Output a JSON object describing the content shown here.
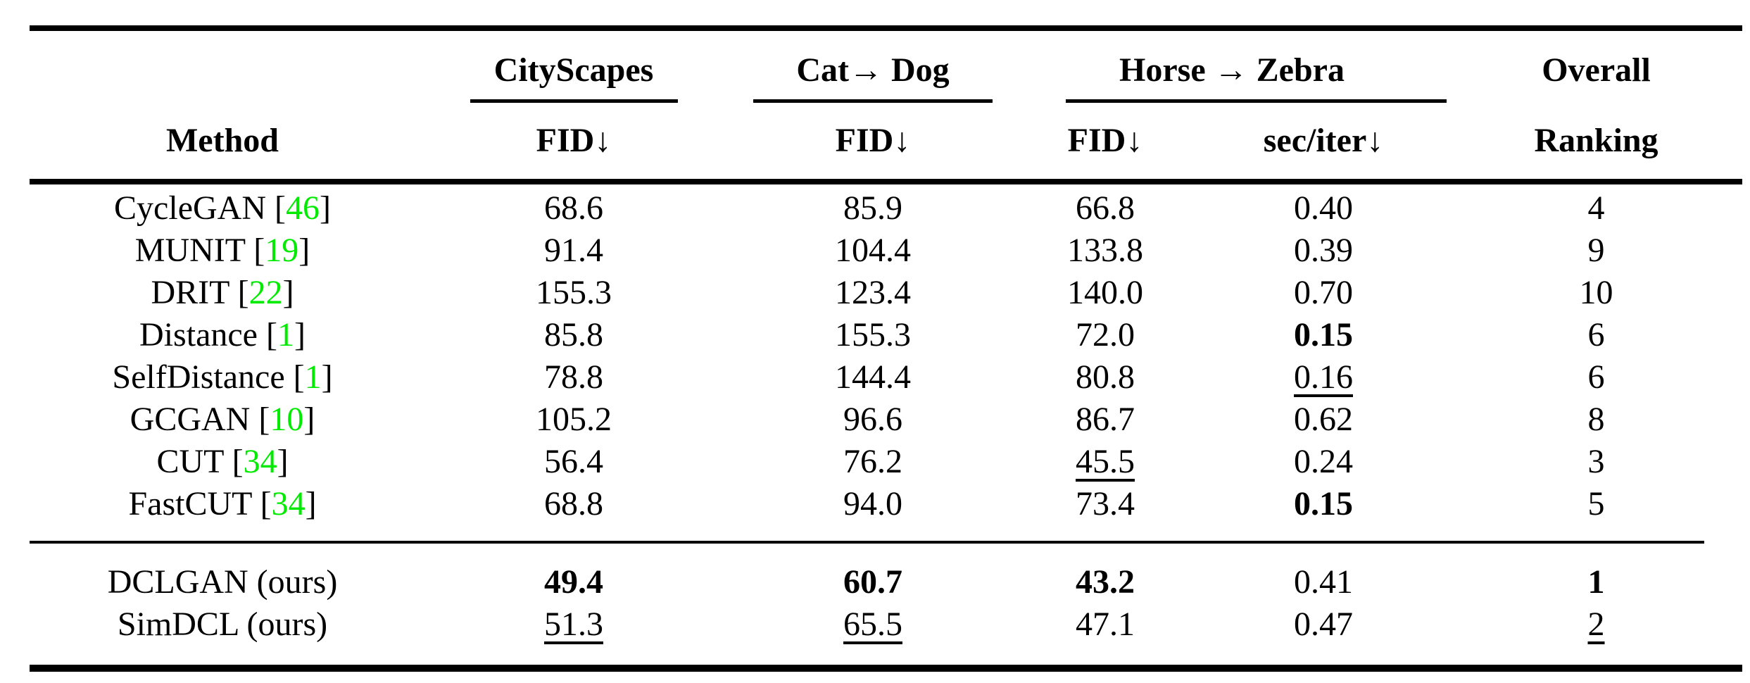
{
  "colors": {
    "citation_green": "#00EB00",
    "text": "#000000",
    "background": "#FFFFFF"
  },
  "table": {
    "header": {
      "groups": [
        {
          "id": "cityscapes",
          "label": "CityScapes",
          "span": 1
        },
        {
          "id": "catdog",
          "label": "Cat→ Dog",
          "span": 1
        },
        {
          "id": "horsezebra",
          "label": "Horse → Zebra",
          "span": 2
        },
        {
          "id": "overall",
          "label": "Overall",
          "span": 1
        }
      ],
      "columns": [
        "Method",
        "FID↓",
        "FID↓",
        "FID↓",
        "sec/iter↓",
        "Ranking"
      ]
    },
    "column_keys": [
      "cityscapes-fid",
      "catdog-fid",
      "horsezebra-fid",
      "sec-per-iter",
      "overall-ranking"
    ],
    "rows": [
      {
        "method": "CycleGAN",
        "cite": "46",
        "cells": [
          {
            "v": "68.6"
          },
          {
            "v": "85.9"
          },
          {
            "v": "66.8"
          },
          {
            "v": "0.40"
          },
          {
            "v": "4"
          }
        ]
      },
      {
        "method": "MUNIT",
        "cite": "19",
        "cells": [
          {
            "v": "91.4"
          },
          {
            "v": "104.4"
          },
          {
            "v": "133.8"
          },
          {
            "v": "0.39"
          },
          {
            "v": "9"
          }
        ]
      },
      {
        "method": "DRIT",
        "cite": "22",
        "cells": [
          {
            "v": "155.3"
          },
          {
            "v": "123.4"
          },
          {
            "v": "140.0"
          },
          {
            "v": "0.70"
          },
          {
            "v": "10"
          }
        ]
      },
      {
        "method": "Distance",
        "cite": "1",
        "cells": [
          {
            "v": "85.8"
          },
          {
            "v": "155.3"
          },
          {
            "v": "72.0"
          },
          {
            "v": "0.15",
            "b": true
          },
          {
            "v": "6"
          }
        ]
      },
      {
        "method": "SelfDistance",
        "cite": "1",
        "cells": [
          {
            "v": "78.8"
          },
          {
            "v": "144.4"
          },
          {
            "v": "80.8"
          },
          {
            "v": "0.16",
            "u": true
          },
          {
            "v": "6"
          }
        ]
      },
      {
        "method": "GCGAN",
        "cite": "10",
        "cells": [
          {
            "v": "105.2"
          },
          {
            "v": "96.6"
          },
          {
            "v": "86.7"
          },
          {
            "v": "0.62"
          },
          {
            "v": "8"
          }
        ]
      },
      {
        "method": "CUT",
        "cite": "34",
        "cells": [
          {
            "v": "56.4"
          },
          {
            "v": "76.2"
          },
          {
            "v": "45.5",
            "u": true
          },
          {
            "v": "0.24"
          },
          {
            "v": "3"
          }
        ]
      },
      {
        "method": "FastCUT",
        "cite": "34",
        "cells": [
          {
            "v": "68.8"
          },
          {
            "v": "94.0"
          },
          {
            "v": "73.4"
          },
          {
            "v": "0.15",
            "b": true
          },
          {
            "v": "5"
          }
        ]
      }
    ],
    "ours_rows": [
      {
        "method": "DCLGAN (ours)",
        "cite": null,
        "cells": [
          {
            "v": "49.4",
            "b": true
          },
          {
            "v": "60.7",
            "b": true
          },
          {
            "v": "43.2",
            "b": true
          },
          {
            "v": "0.41"
          },
          {
            "v": "1",
            "b": true
          }
        ]
      },
      {
        "method": "SimDCL (ours)",
        "cite": null,
        "cells": [
          {
            "v": "51.3",
            "u": true
          },
          {
            "v": "65.5",
            "u": true
          },
          {
            "v": "47.1"
          },
          {
            "v": "0.47"
          },
          {
            "v": "2",
            "u": true
          }
        ]
      }
    ]
  }
}
